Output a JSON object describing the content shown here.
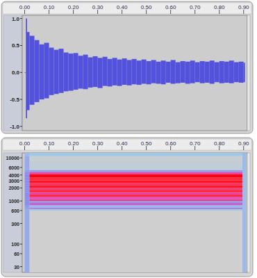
{
  "chart_data": [
    {
      "type": "area",
      "x": [
        0,
        0.005,
        0.01,
        0.02,
        0.04,
        0.06,
        0.08,
        0.1,
        0.12,
        0.14,
        0.16,
        0.18,
        0.2,
        0.22,
        0.24,
        0.26,
        0.28,
        0.3,
        0.32,
        0.34,
        0.36,
        0.38,
        0.4,
        0.42,
        0.44,
        0.46,
        0.48,
        0.5,
        0.52,
        0.54,
        0.56,
        0.58,
        0.6,
        0.62,
        0.64,
        0.66,
        0.68,
        0.7,
        0.72,
        0.74,
        0.76,
        0.78,
        0.8,
        0.82,
        0.84,
        0.86,
        0.88,
        0.9
      ],
      "series": [
        {
          "color": "#5252dc",
          "values": [
            0,
            1.0,
            0.75,
            0.68,
            0.6,
            0.52,
            0.55,
            0.46,
            0.42,
            0.44,
            0.37,
            0.35,
            0.36,
            0.31,
            0.33,
            0.28,
            0.3,
            0.27,
            0.29,
            0.25,
            0.27,
            0.24,
            0.26,
            0.23,
            0.25,
            0.22,
            0.24,
            0.21,
            0.23,
            0.2,
            0.22,
            0.2,
            0.23,
            0.19,
            0.21,
            0.2,
            0.22,
            0.19,
            0.21,
            0.2,
            0.22,
            0.19,
            0.21,
            0.2,
            0.22,
            0.19,
            0.2,
            0.18
          ]
        },
        {
          "color": "#5252dc",
          "values": [
            0,
            -0.85,
            -0.7,
            -0.6,
            -0.55,
            -0.5,
            -0.48,
            -0.42,
            -0.4,
            -0.38,
            -0.35,
            -0.34,
            -0.32,
            -0.3,
            -0.31,
            -0.28,
            -0.27,
            -0.29,
            -0.25,
            -0.26,
            -0.24,
            -0.25,
            -0.23,
            -0.24,
            -0.22,
            -0.23,
            -0.21,
            -0.22,
            -0.2,
            -0.21,
            -0.22,
            -0.19,
            -0.21,
            -0.2,
            -0.19,
            -0.21,
            -0.2,
            -0.18,
            -0.2,
            -0.19,
            -0.21,
            -0.18,
            -0.2,
            -0.19,
            -0.2,
            -0.18,
            -0.19,
            -0.18
          ]
        }
      ],
      "xlim": [
        -0.01,
        0.915
      ],
      "xticks": [
        {
          "value": 0,
          "label": "0.00"
        },
        {
          "value": 0.1,
          "label": "0.10"
        },
        {
          "value": 0.2,
          "label": "0.20"
        },
        {
          "value": 0.3,
          "label": "0.30"
        },
        {
          "value": 0.4,
          "label": "0.40"
        },
        {
          "value": 0.5,
          "label": "0.50"
        },
        {
          "value": 0.6,
          "label": "0.60"
        },
        {
          "value": 0.7,
          "label": "0.70"
        },
        {
          "value": 0.8,
          "label": "0.80"
        },
        {
          "value": 0.9,
          "label": "0.90"
        }
      ],
      "ylim": [
        -1.08,
        1.06
      ],
      "yticks": [
        {
          "value": 1,
          "label": "1.0"
        },
        0.5,
        {
          "value": 0,
          "label": "0.0"
        },
        -0.5,
        {
          "value": -1,
          "label": "-1.0"
        }
      ]
    },
    {
      "type": "heatmap",
      "log": "y",
      "x_bins": [
        0,
        0.02,
        0.895,
        0.91
      ],
      "y_bins": [
        22,
        600,
        650,
        700,
        800,
        900,
        1000,
        1100,
        1250,
        1400,
        1600,
        1800,
        2000,
        2300,
        2600,
        3000,
        3500,
        4200,
        4700,
        5200,
        8000,
        11000,
        13000
      ],
      "cells": [
        [
          0.4,
          0.0,
          0.35
        ],
        [
          0.4,
          0.3,
          0.35
        ],
        [
          0.45,
          0.55,
          0.35
        ],
        [
          0.45,
          0.35,
          0.35
        ],
        [
          0.5,
          0.65,
          0.35
        ],
        [
          0.5,
          0.45,
          0.35
        ],
        [
          0.5,
          0.8,
          0.35
        ],
        [
          0.5,
          0.7,
          0.35
        ],
        [
          0.5,
          0.9,
          0.35
        ],
        [
          0.5,
          0.75,
          0.35
        ],
        [
          0.5,
          0.92,
          0.35
        ],
        [
          0.5,
          0.8,
          0.35
        ],
        [
          0.5,
          0.95,
          0.35
        ],
        [
          0.5,
          0.85,
          0.35
        ],
        [
          0.5,
          0.95,
          0.35
        ],
        [
          0.5,
          0.9,
          0.35
        ],
        [
          0.5,
          1.0,
          0.35
        ],
        [
          0.5,
          0.75,
          0.35
        ],
        [
          0.45,
          0.45,
          0.35
        ],
        [
          0.4,
          0.1,
          0.35
        ],
        [
          0.4,
          0.05,
          0.35
        ],
        [
          0.35,
          0.3,
          0.35
        ]
      ],
      "zlim": [
        0,
        1
      ],
      "xlim": [
        -0.01,
        0.915
      ],
      "xticks": [
        {
          "value": 0,
          "label": "0.00"
        },
        {
          "value": 0.1,
          "label": "0.10"
        },
        {
          "value": 0.2,
          "label": "0.20"
        },
        {
          "value": 0.3,
          "label": "0.30"
        },
        {
          "value": 0.4,
          "label": "0.40"
        },
        {
          "value": 0.5,
          "label": "0.50"
        },
        {
          "value": 0.6,
          "label": "0.60"
        },
        {
          "value": 0.7,
          "label": "0.70"
        },
        {
          "value": 0.8,
          "label": "0.80"
        },
        {
          "value": 0.9,
          "label": "0.90"
        }
      ],
      "ylim": [
        22,
        13000
      ],
      "yticks": [
        30,
        60,
        100,
        300,
        600,
        1000,
        2000,
        3000,
        4000,
        6000,
        10000
      ]
    }
  ]
}
